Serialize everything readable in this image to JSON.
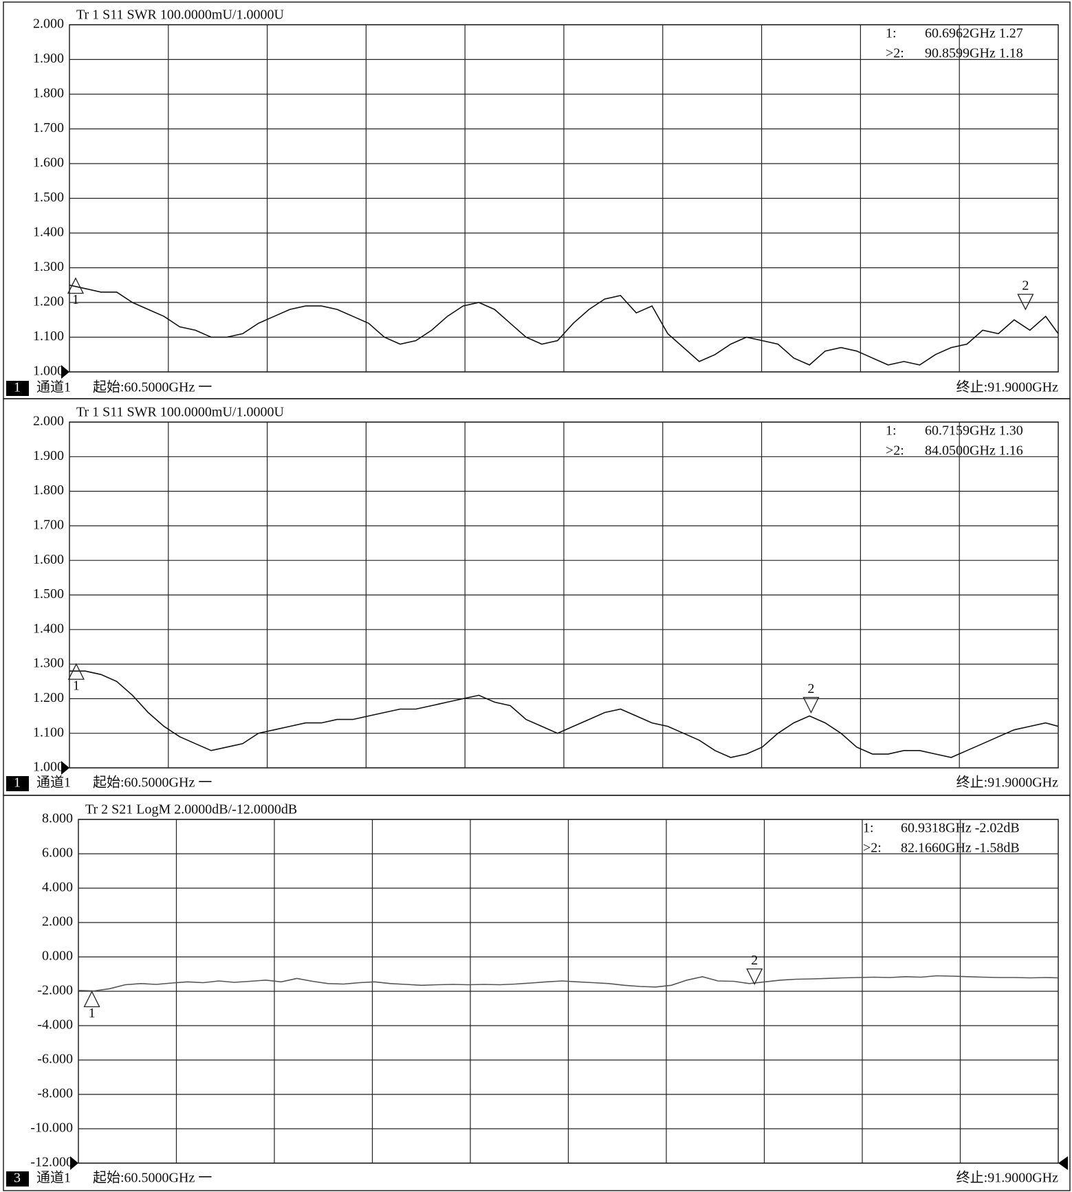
{
  "chart_data": [
    {
      "type": "line",
      "title": "Tr 1  S11 SWR 100.0000mU/1.0000U",
      "xlim": [
        60.5,
        91.9
      ],
      "x_divisions": 10,
      "grid": true,
      "ylim": [
        1,
        2
      ],
      "yticks": [
        {
          "value": 1,
          "label": "1.000"
        },
        {
          "value": 1.1,
          "label": "1.100"
        },
        {
          "value": 1.2,
          "label": "1.200"
        },
        {
          "value": 1.3,
          "label": "1.300"
        },
        {
          "value": 1.4,
          "label": "1.400"
        },
        {
          "value": 1.5,
          "label": "1.500"
        },
        {
          "value": 1.6,
          "label": "1.600"
        },
        {
          "value": 1.7,
          "label": "1.700"
        },
        {
          "value": 1.8,
          "label": "1.800"
        },
        {
          "value": 1.9,
          "label": "1.900"
        },
        {
          "value": 2,
          "label": "2.000"
        }
      ],
      "x": [
        60.5,
        61,
        61.5,
        62,
        62.5,
        63,
        63.5,
        64,
        64.5,
        65,
        65.5,
        66,
        66.5,
        67,
        67.5,
        68,
        68.5,
        69,
        69.5,
        70,
        70.5,
        71,
        71.5,
        72,
        72.5,
        73,
        73.5,
        74,
        74.5,
        75,
        75.5,
        76,
        76.5,
        77,
        77.5,
        78,
        78.5,
        79,
        79.5,
        80,
        80.5,
        81,
        81.5,
        82,
        82.5,
        83,
        83.5,
        84,
        84.5,
        85,
        85.5,
        86,
        86.5,
        87,
        87.5,
        88,
        88.5,
        89,
        89.5,
        90,
        90.5,
        91,
        91.5,
        91.9
      ],
      "series": [
        {
          "color": "#111111",
          "values": [
            1.25,
            1.24,
            1.23,
            1.23,
            1.2,
            1.18,
            1.16,
            1.13,
            1.12,
            1.1,
            1.1,
            1.11,
            1.14,
            1.16,
            1.18,
            1.19,
            1.19,
            1.18,
            1.16,
            1.14,
            1.1,
            1.08,
            1.09,
            1.12,
            1.16,
            1.19,
            1.2,
            1.18,
            1.14,
            1.1,
            1.08,
            1.09,
            1.14,
            1.18,
            1.21,
            1.22,
            1.17,
            1.19,
            1.11,
            1.07,
            1.03,
            1.05,
            1.08,
            1.1,
            1.09,
            1.08,
            1.04,
            1.02,
            1.06,
            1.07,
            1.06,
            1.04,
            1.02,
            1.03,
            1.02,
            1.05,
            1.07,
            1.08,
            1.12,
            1.11,
            1.15,
            1.12,
            1.16,
            1.11
          ]
        }
      ],
      "markers": [
        {
          "name": "1",
          "x": 60.6962,
          "y": 1.27,
          "prefix": "1:",
          "readout": "60.6962GHz 1.27"
        },
        {
          "name": "2",
          "x": 90.8599,
          "y": 1.18,
          "prefix": ">2:",
          "readout": "90.8599GHz 1.18",
          "active": true
        }
      ],
      "channel_number": "1",
      "channel": "通道1",
      "start_label": "起始:60.5000GHz 一",
      "stop_label": "终止:91.9000GHz"
    },
    {
      "type": "line",
      "title": "Tr 1  S11 SWR 100.0000mU/1.0000U",
      "xlim": [
        60.5,
        91.9
      ],
      "x_divisions": 10,
      "grid": true,
      "ylim": [
        1,
        2
      ],
      "yticks": [
        {
          "value": 1,
          "label": "1.000"
        },
        {
          "value": 1.1,
          "label": "1.100"
        },
        {
          "value": 1.2,
          "label": "1.200"
        },
        {
          "value": 1.3,
          "label": "1.300"
        },
        {
          "value": 1.4,
          "label": "1.400"
        },
        {
          "value": 1.5,
          "label": "1.500"
        },
        {
          "value": 1.6,
          "label": "1.600"
        },
        {
          "value": 1.7,
          "label": "1.700"
        },
        {
          "value": 1.8,
          "label": "1.800"
        },
        {
          "value": 1.9,
          "label": "1.900"
        },
        {
          "value": 2,
          "label": "2.000"
        }
      ],
      "x": [
        60.5,
        61,
        61.5,
        62,
        62.5,
        63,
        63.5,
        64,
        64.5,
        65,
        65.5,
        66,
        66.5,
        67,
        67.5,
        68,
        68.5,
        69,
        69.5,
        70,
        70.5,
        71,
        71.5,
        72,
        72.5,
        73,
        73.5,
        74,
        74.5,
        75,
        75.5,
        76,
        76.5,
        77,
        77.5,
        78,
        78.5,
        79,
        79.5,
        80,
        80.5,
        81,
        81.5,
        82,
        82.5,
        83,
        83.5,
        84,
        84.5,
        85,
        85.5,
        86,
        86.5,
        87,
        87.5,
        88,
        88.5,
        89,
        89.5,
        90,
        90.5,
        91,
        91.5,
        91.9
      ],
      "series": [
        {
          "color": "#111111",
          "values": [
            1.28,
            1.28,
            1.27,
            1.25,
            1.21,
            1.16,
            1.12,
            1.09,
            1.07,
            1.05,
            1.06,
            1.07,
            1.1,
            1.11,
            1.12,
            1.13,
            1.13,
            1.14,
            1.14,
            1.15,
            1.16,
            1.17,
            1.17,
            1.18,
            1.19,
            1.2,
            1.21,
            1.19,
            1.18,
            1.14,
            1.12,
            1.1,
            1.12,
            1.14,
            1.16,
            1.17,
            1.15,
            1.13,
            1.12,
            1.1,
            1.08,
            1.05,
            1.03,
            1.04,
            1.06,
            1.1,
            1.13,
            1.15,
            1.13,
            1.1,
            1.06,
            1.04,
            1.04,
            1.05,
            1.05,
            1.04,
            1.03,
            1.05,
            1.07,
            1.09,
            1.11,
            1.12,
            1.13,
            1.12
          ]
        }
      ],
      "markers": [
        {
          "name": "1",
          "x": 60.7159,
          "y": 1.3,
          "prefix": "1:",
          "readout": "60.7159GHz 1.30"
        },
        {
          "name": "2",
          "x": 84.05,
          "y": 1.16,
          "prefix": ">2:",
          "readout": "84.0500GHz 1.16",
          "active": true
        }
      ],
      "channel_number": "1",
      "channel": "通道1",
      "start_label": "起始:60.5000GHz 一",
      "stop_label": "终止:91.9000GHz"
    },
    {
      "type": "line",
      "title": "Tr 2  S21 LogM 2.0000dB/-12.0000dB",
      "xlim": [
        60.5,
        91.9
      ],
      "x_divisions": 10,
      "grid": true,
      "ylim": [
        -12,
        8
      ],
      "yticks": [
        {
          "value": -12,
          "label": "-12.000"
        },
        {
          "value": -10,
          "label": "-10.000"
        },
        {
          "value": -8,
          "label": "-8.000"
        },
        {
          "value": -6,
          "label": "-6.000"
        },
        {
          "value": -4,
          "label": "-4.000"
        },
        {
          "value": -2,
          "label": "-2.000"
        },
        {
          "value": 0,
          "label": "0.000"
        },
        {
          "value": 2,
          "label": "2.000"
        },
        {
          "value": 4,
          "label": "4.000"
        },
        {
          "value": 6,
          "label": "6.000"
        },
        {
          "value": 8,
          "label": "8.000"
        }
      ],
      "x": [
        60.5,
        61,
        61.5,
        62,
        62.5,
        63,
        63.5,
        64,
        64.5,
        65,
        65.5,
        66,
        66.5,
        67,
        67.5,
        68,
        68.5,
        69,
        69.5,
        70,
        70.5,
        71,
        71.5,
        72,
        72.5,
        73,
        73.5,
        74,
        74.5,
        75,
        75.5,
        76,
        76.5,
        77,
        77.5,
        78,
        78.5,
        79,
        79.5,
        80,
        80.5,
        81,
        81.5,
        82,
        82.5,
        83,
        83.5,
        84,
        84.5,
        85,
        85.5,
        86,
        86.5,
        87,
        87.5,
        88,
        88.5,
        89,
        89.5,
        90,
        90.5,
        91,
        91.5,
        91.9
      ],
      "series": [
        {
          "color": "#555555",
          "values": [
            -1.95,
            -1.98,
            -1.85,
            -1.62,
            -1.55,
            -1.6,
            -1.52,
            -1.45,
            -1.5,
            -1.4,
            -1.48,
            -1.42,
            -1.35,
            -1.45,
            -1.25,
            -1.42,
            -1.55,
            -1.58,
            -1.5,
            -1.45,
            -1.55,
            -1.6,
            -1.65,
            -1.62,
            -1.6,
            -1.62,
            -1.6,
            -1.62,
            -1.58,
            -1.52,
            -1.45,
            -1.4,
            -1.45,
            -1.5,
            -1.55,
            -1.65,
            -1.72,
            -1.75,
            -1.65,
            -1.35,
            -1.15,
            -1.4,
            -1.42,
            -1.55,
            -1.45,
            -1.35,
            -1.3,
            -1.28,
            -1.25,
            -1.22,
            -1.2,
            -1.18,
            -1.2,
            -1.15,
            -1.18,
            -1.1,
            -1.12,
            -1.15,
            -1.18,
            -1.2,
            -1.2,
            -1.22,
            -1.2,
            -1.22
          ]
        }
      ],
      "markers": [
        {
          "name": "1",
          "x": 60.9318,
          "y": -2.02,
          "prefix": "1:",
          "readout": "60.9318GHz -2.02dB"
        },
        {
          "name": "2",
          "x": 82.166,
          "y": -1.58,
          "prefix": ">2:",
          "readout": "82.1660GHz -1.58dB",
          "active": true
        }
      ],
      "channel_number": "3",
      "channel": "通道1",
      "start_label": "起始:60.5000GHz 一",
      "stop_label": "终止:91.9000GHz"
    }
  ]
}
